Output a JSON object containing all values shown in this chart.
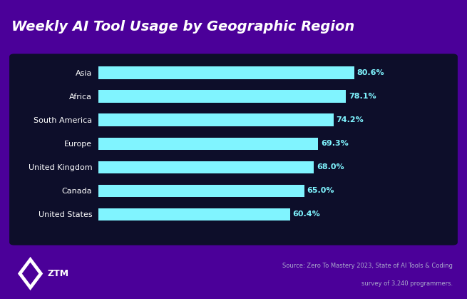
{
  "title": "Weekly AI Tool Usage by Geographic Region",
  "categories": [
    "Asia",
    "Africa",
    "South America",
    "Europe",
    "United Kingdom",
    "Canada",
    "United States"
  ],
  "values": [
    80.6,
    78.1,
    74.2,
    69.3,
    68.0,
    65.0,
    60.4
  ],
  "labels": [
    "80.6%",
    "78.1%",
    "74.2%",
    "69.3%",
    "68.0%",
    "65.0%",
    "60.4%"
  ],
  "bar_color": "#80F4FF",
  "title_color": "#FFFFFF",
  "chart_bg_color": "#0D0E2A",
  "outer_bg_color": "#4B0099",
  "label_color": "#FFFFFF",
  "value_color": "#80F4FF",
  "source_text_line1": "Source: Zero To Mastery 2023, State of AI Tools & Coding",
  "source_text_line2": "survey of 3,240 programmers.",
  "source_color": "#AAAACC",
  "title_fontsize": 14,
  "label_fontsize": 8,
  "value_fontsize": 8,
  "xlim": [
    0,
    100
  ]
}
